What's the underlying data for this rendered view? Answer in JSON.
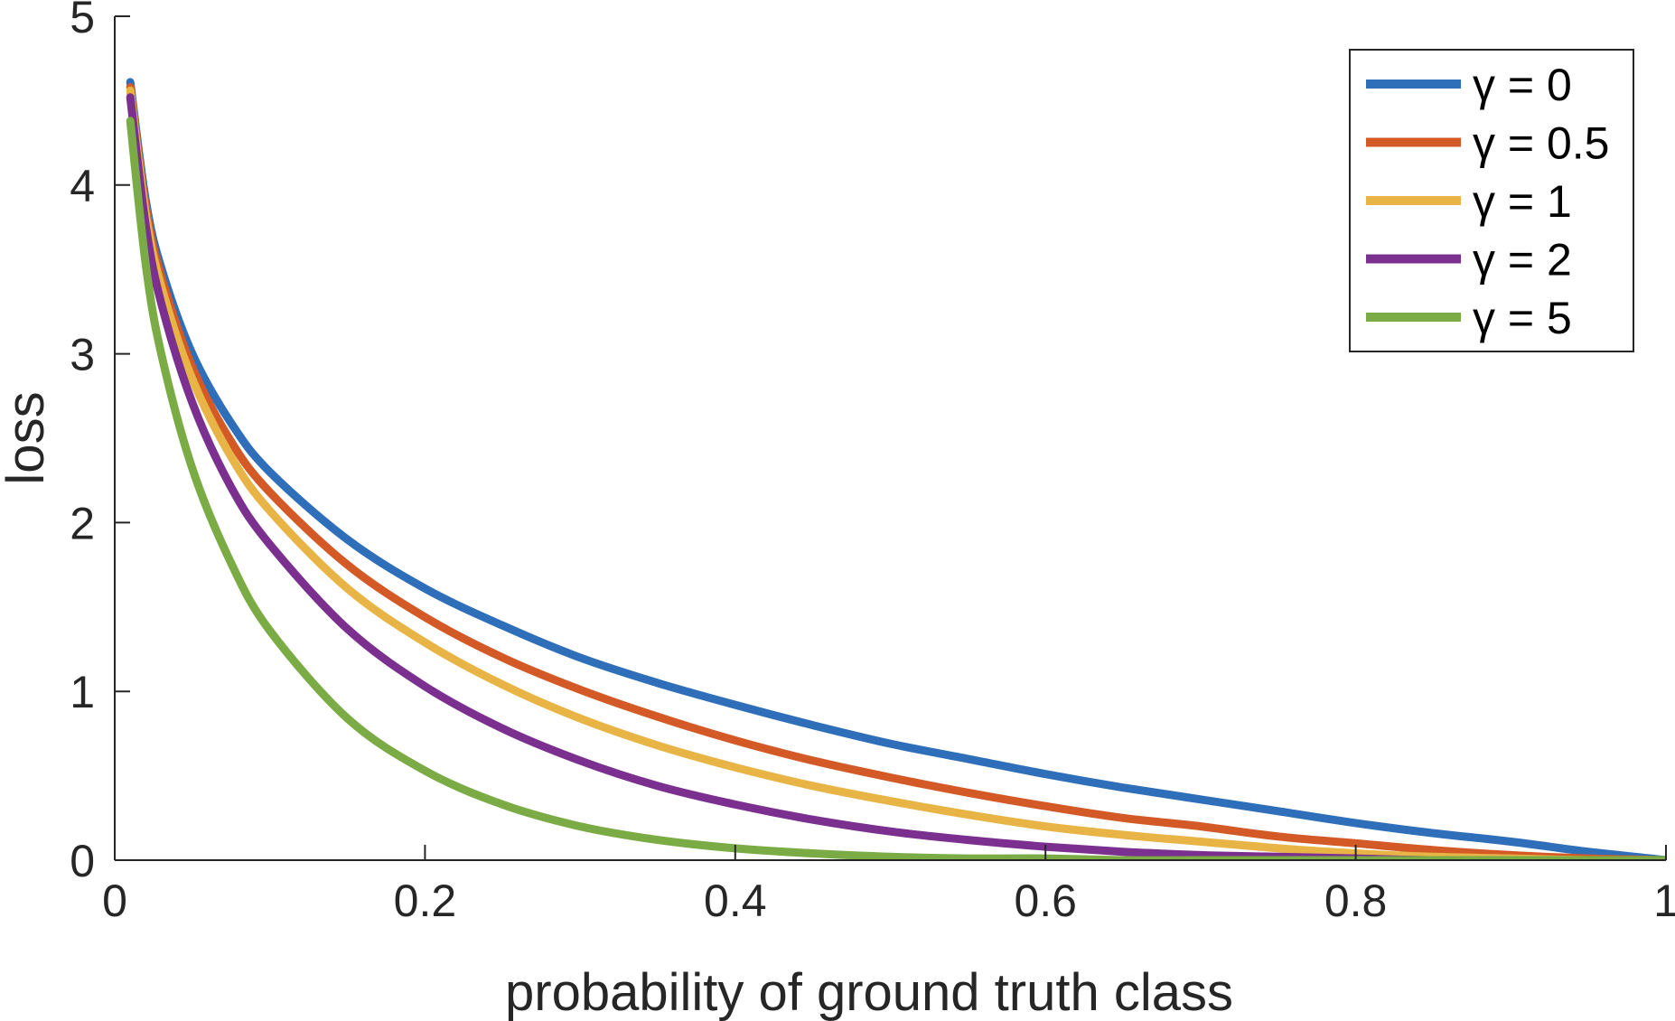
{
  "chart_data": {
    "type": "line",
    "xlabel": "probability of ground truth class",
    "ylabel": "loss",
    "xlim": [
      0,
      1
    ],
    "ylim": [
      0,
      5
    ],
    "x_ticks": [
      0,
      0.2,
      0.4,
      0.6,
      0.8,
      1
    ],
    "x_tick_labels": [
      "0",
      "0.2",
      "0.4",
      "0.6",
      "0.8",
      "1"
    ],
    "y_ticks": [
      0,
      1,
      2,
      3,
      4,
      5
    ],
    "y_tick_labels": [
      "0",
      "1",
      "2",
      "3",
      "4",
      "5"
    ],
    "grid": false,
    "legend_position": "top-right",
    "x": [
      0.01,
      0.02,
      0.03,
      0.05,
      0.075,
      0.1,
      0.15,
      0.2,
      0.25,
      0.3,
      0.35,
      0.4,
      0.45,
      0.5,
      0.55,
      0.6,
      0.65,
      0.7,
      0.75,
      0.8,
      0.85,
      0.9,
      0.95,
      1.0
    ],
    "series": [
      {
        "name": "γ = 0",
        "color": "#2f6fba",
        "values": [
          4.61,
          3.91,
          3.51,
          3.0,
          2.59,
          2.3,
          1.9,
          1.61,
          1.39,
          1.2,
          1.05,
          0.92,
          0.8,
          0.69,
          0.6,
          0.51,
          0.43,
          0.36,
          0.29,
          0.22,
          0.16,
          0.11,
          0.05,
          0.0
        ]
      },
      {
        "name": "γ = 0.5",
        "color": "#d35a26",
        "values": [
          4.58,
          3.87,
          3.46,
          2.92,
          2.48,
          2.18,
          1.75,
          1.44,
          1.2,
          1.01,
          0.85,
          0.71,
          0.59,
          0.49,
          0.4,
          0.32,
          0.25,
          0.2,
          0.14,
          0.1,
          0.06,
          0.03,
          0.01,
          0.0
        ]
      },
      {
        "name": "γ = 1",
        "color": "#e8b445",
        "values": [
          4.56,
          3.83,
          3.4,
          2.85,
          2.39,
          2.07,
          1.61,
          1.29,
          1.04,
          0.84,
          0.68,
          0.55,
          0.44,
          0.35,
          0.27,
          0.2,
          0.15,
          0.11,
          0.07,
          0.04,
          0.02,
          0.01,
          0.0,
          0.0
        ]
      },
      {
        "name": "γ = 2",
        "color": "#7b2f8e",
        "values": [
          4.52,
          3.76,
          3.3,
          2.71,
          2.21,
          1.87,
          1.37,
          1.03,
          0.78,
          0.59,
          0.44,
          0.33,
          0.24,
          0.17,
          0.12,
          0.08,
          0.05,
          0.03,
          0.02,
          0.01,
          0.0,
          0.0,
          0.0,
          0.0
        ]
      },
      {
        "name": "γ = 5",
        "color": "#7aab44",
        "values": [
          4.38,
          3.53,
          3.0,
          2.32,
          1.76,
          1.36,
          0.84,
          0.53,
          0.33,
          0.2,
          0.12,
          0.07,
          0.04,
          0.02,
          0.01,
          0.01,
          0.0,
          0.0,
          0.0,
          0.0,
          0.0,
          0.0,
          0.0,
          0.0
        ]
      }
    ]
  }
}
